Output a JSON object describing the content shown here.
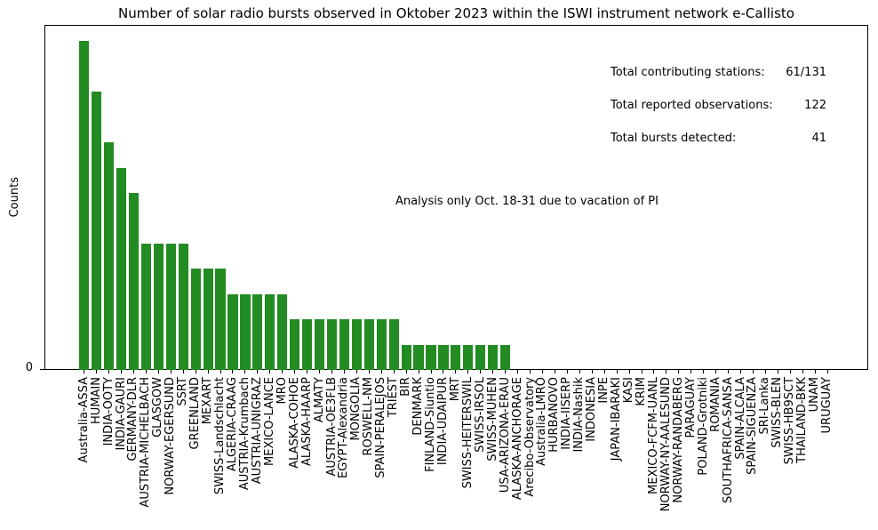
{
  "figure": {
    "stats": {
      "rows": [
        {
          "label": "Total contributing stations:",
          "value": "61/131"
        },
        {
          "label": "Total reported observations:",
          "value": "122"
        },
        {
          "label": "Total bursts detected:",
          "value": "41"
        }
      ]
    },
    "annotation": "Analysis only Oct. 18-31 due to vacation of PI",
    "y_tick_zero": "0"
  },
  "chart_data": {
    "type": "bar",
    "title": "Number of solar radio bursts observed in Oktober 2023 within the ISWI instrument network e-Callisto",
    "xlabel": "",
    "ylabel": "Counts",
    "ylim": [
      0,
      13.65
    ],
    "grid": false,
    "legend": "none",
    "bar_color": "#228b22",
    "y_tick_labels": [
      "0"
    ],
    "categories": [
      "Australia-ASSA",
      "HUMAIN",
      "INDIA-OOTY",
      "INDIA-GAURI",
      "GERMANY-DLR",
      "AUSTRIA-MICHELBACH",
      "GLASGOW",
      "NORWAY-EGERSUND",
      "SSRT",
      "GREENLAND",
      "MEXART",
      "SWISS-Landschlacht",
      "ALGERIA-CRAAG",
      "AUSTRIA-Krumbach",
      "AUSTRIA-UNIGRAZ",
      "MEXICO-LANCE",
      "MRO",
      "ALASKA-COHOE",
      "ALASKA-HAARP",
      "ALMATY",
      "AUSTRIA-OE3FLB",
      "EGYPT-Alexandria",
      "MONGOLIA",
      "ROSWELL-NM",
      "SPAIN-PERALEJOS",
      "TRIEST",
      "BIR",
      "DENMARK",
      "FINLAND-Siuntio",
      "INDIA-UDAIPUR",
      "MRT",
      "SWISS-HEITERSWIL",
      "SWISS-IRSOL",
      "SWISS-MUHEN",
      "USA-ARIZONA-ERAU",
      "ALASKA-ANCHORAGE",
      "Arecibo-Observatory",
      "Australia-LMRO",
      "HURBANOVO",
      "INDIA-IISERP",
      "INDIA-Nashik",
      "INDONESIA",
      "INPE",
      "JAPAN-IBARAKI",
      "KASI",
      "KRIM",
      "MEXICO-FCFM-UANL",
      "NORWAY-NY-AALESUND",
      "NORWAY-RANDABERG",
      "PARAGUAY",
      "POLAND-Grotniki",
      "ROMANIA",
      "SOUTHAFRICA-SANSA",
      "SPAIN-ALCALA",
      "SPAIN-SIGUENZA",
      "SRI-Lanka",
      "SWISS-BLEN",
      "SWISS-HB9SCT",
      "THAILAND-BKK",
      "UNAM",
      "URUGUAY"
    ],
    "values": [
      13,
      11,
      9,
      8,
      7,
      5,
      5,
      5,
      5,
      4,
      4,
      4,
      3,
      3,
      3,
      3,
      3,
      2,
      2,
      2,
      2,
      2,
      2,
      2,
      2,
      2,
      1,
      1,
      1,
      1,
      1,
      1,
      1,
      1,
      1,
      0,
      0,
      0,
      0,
      0,
      0,
      0,
      0,
      0,
      0,
      0,
      0,
      0,
      0,
      0,
      0,
      0,
      0,
      0,
      0,
      0,
      0,
      0,
      0,
      0,
      0
    ],
    "annotations": [
      "Total contributing stations:  61/131",
      "Total reported observations:    122",
      "Total bursts detected:           41",
      "Analysis only Oct. 18-31 due to vacation of PI"
    ]
  }
}
